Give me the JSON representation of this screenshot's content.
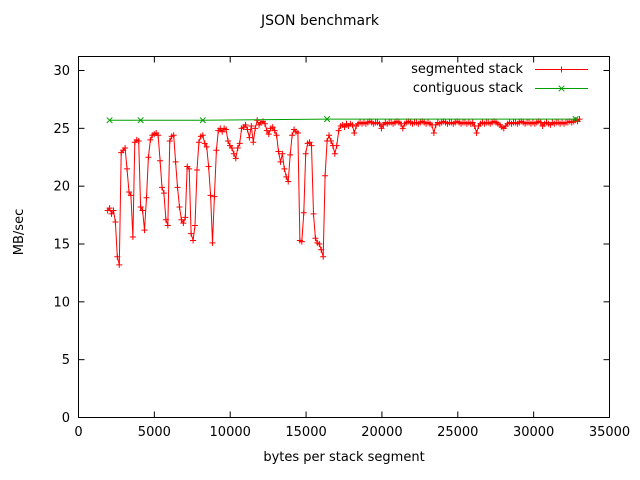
{
  "title": "JSON benchmark",
  "xlabel": "bytes per stack segment",
  "ylabel": "MB/sec",
  "colors": {
    "axis": "#000000",
    "background": "#ffffff",
    "series1": "#ff0000",
    "series2": "#00a000"
  },
  "legend": [
    {
      "label": "segmented stack",
      "color": "#ff0000",
      "marker": "plus"
    },
    {
      "label": "contiguous stack",
      "color": "#00a000",
      "marker": "x"
    }
  ],
  "chart_data": {
    "type": "line",
    "title": "JSON benchmark",
    "xlabel": "bytes per stack segment",
    "ylabel": "MB/sec",
    "xlim": [
      0,
      35000
    ],
    "ylim": [
      0,
      30
    ],
    "x_ticks": [
      0,
      5000,
      10000,
      15000,
      20000,
      25000,
      30000,
      35000
    ],
    "y_ticks": [
      0,
      5,
      10,
      15,
      20,
      25,
      30
    ],
    "grid": false,
    "legend_position": "top-right-inside",
    "series": [
      {
        "name": "segmented stack",
        "color": "#ff0000",
        "marker": "plus",
        "points": [
          [
            1920,
            17.9
          ],
          [
            2048,
            18.1
          ],
          [
            2176,
            17.6
          ],
          [
            2304,
            17.9
          ],
          [
            2432,
            16.9
          ],
          [
            2560,
            13.9
          ],
          [
            2688,
            13.2
          ],
          [
            2816,
            22.9
          ],
          [
            2944,
            23.1
          ],
          [
            3072,
            23.3
          ],
          [
            3200,
            21.5
          ],
          [
            3328,
            19.5
          ],
          [
            3456,
            19.2
          ],
          [
            3584,
            15.6
          ],
          [
            3712,
            23.8
          ],
          [
            3840,
            24.0
          ],
          [
            3968,
            23.9
          ],
          [
            4096,
            18.2
          ],
          [
            4224,
            17.9
          ],
          [
            4352,
            16.2
          ],
          [
            4480,
            19.0
          ],
          [
            4608,
            22.5
          ],
          [
            4736,
            24.0
          ],
          [
            4864,
            24.4
          ],
          [
            4992,
            24.5
          ],
          [
            5120,
            24.6
          ],
          [
            5248,
            24.4
          ],
          [
            5376,
            22.2
          ],
          [
            5504,
            19.9
          ],
          [
            5632,
            19.4
          ],
          [
            5760,
            17.1
          ],
          [
            5888,
            16.6
          ],
          [
            6016,
            23.9
          ],
          [
            6144,
            24.3
          ],
          [
            6272,
            24.4
          ],
          [
            6400,
            22.1
          ],
          [
            6528,
            19.9
          ],
          [
            6656,
            18.2
          ],
          [
            6784,
            17.1
          ],
          [
            6912,
            16.8
          ],
          [
            7040,
            17.3
          ],
          [
            7168,
            21.7
          ],
          [
            7296,
            21.5
          ],
          [
            7424,
            15.9
          ],
          [
            7552,
            15.3
          ],
          [
            7680,
            16.6
          ],
          [
            7808,
            21.4
          ],
          [
            7936,
            23.8
          ],
          [
            8064,
            24.3
          ],
          [
            8192,
            24.4
          ],
          [
            8320,
            23.7
          ],
          [
            8448,
            23.4
          ],
          [
            8576,
            21.7
          ],
          [
            8704,
            19.2
          ],
          [
            8832,
            15.1
          ],
          [
            8960,
            19.1
          ],
          [
            9088,
            23.1
          ],
          [
            9216,
            24.8
          ],
          [
            9344,
            25.0
          ],
          [
            9472,
            24.7
          ],
          [
            9600,
            25.0
          ],
          [
            9728,
            24.9
          ],
          [
            9856,
            23.9
          ],
          [
            9984,
            23.5
          ],
          [
            10112,
            23.3
          ],
          [
            10240,
            22.8
          ],
          [
            10368,
            22.4
          ],
          [
            10496,
            23.3
          ],
          [
            10624,
            23.7
          ],
          [
            10752,
            25.0
          ],
          [
            10880,
            25.1
          ],
          [
            11008,
            25.3
          ],
          [
            11136,
            24.9
          ],
          [
            11264,
            24.2
          ],
          [
            11392,
            25.2
          ],
          [
            11520,
            23.8
          ],
          [
            11648,
            25.0
          ],
          [
            11776,
            25.7
          ],
          [
            11904,
            25.3
          ],
          [
            12032,
            25.5
          ],
          [
            12160,
            25.6
          ],
          [
            12288,
            25.4
          ],
          [
            12416,
            24.8
          ],
          [
            12544,
            24.5
          ],
          [
            12672,
            25.0
          ],
          [
            12800,
            25.1
          ],
          [
            12928,
            24.8
          ],
          [
            13056,
            24.4
          ],
          [
            13184,
            23.0
          ],
          [
            13312,
            22.1
          ],
          [
            13440,
            22.8
          ],
          [
            13568,
            21.5
          ],
          [
            13696,
            20.8
          ],
          [
            13824,
            20.4
          ],
          [
            13952,
            22.7
          ],
          [
            14080,
            24.4
          ],
          [
            14208,
            24.9
          ],
          [
            14336,
            24.7
          ],
          [
            14464,
            24.6
          ],
          [
            14592,
            15.3
          ],
          [
            14720,
            15.2
          ],
          [
            14848,
            17.7
          ],
          [
            14976,
            22.8
          ],
          [
            15104,
            23.7
          ],
          [
            15232,
            23.8
          ],
          [
            15360,
            23.5
          ],
          [
            15488,
            17.6
          ],
          [
            15616,
            15.5
          ],
          [
            15744,
            15.1
          ],
          [
            15872,
            15.0
          ],
          [
            16000,
            14.5
          ],
          [
            16128,
            13.9
          ],
          [
            16256,
            20.9
          ],
          [
            16384,
            23.9
          ],
          [
            16512,
            24.4
          ],
          [
            16640,
            23.9
          ],
          [
            16768,
            23.5
          ],
          [
            16896,
            22.8
          ],
          [
            17024,
            23.5
          ],
          [
            17152,
            24.8
          ],
          [
            17280,
            25.2
          ],
          [
            17408,
            25.3
          ],
          [
            17536,
            25.1
          ],
          [
            17664,
            25.4
          ],
          [
            17792,
            25.2
          ],
          [
            17920,
            25.4
          ],
          [
            18048,
            25.3
          ],
          [
            18176,
            24.6
          ],
          [
            18304,
            25.2
          ],
          [
            18432,
            25.4
          ],
          [
            18560,
            25.5
          ],
          [
            18688,
            25.4
          ],
          [
            18816,
            25.5
          ],
          [
            18944,
            25.4
          ],
          [
            19072,
            25.5
          ],
          [
            19200,
            25.6
          ],
          [
            19328,
            25.5
          ],
          [
            19456,
            25.4
          ],
          [
            19584,
            25.5
          ],
          [
            19712,
            25.5
          ],
          [
            19840,
            25.4
          ],
          [
            19968,
            25.0
          ],
          [
            20096,
            25.3
          ],
          [
            20224,
            25.5
          ],
          [
            20352,
            25.4
          ],
          [
            20480,
            25.5
          ],
          [
            20608,
            25.5
          ],
          [
            20736,
            25.4
          ],
          [
            20864,
            25.5
          ],
          [
            20992,
            25.6
          ],
          [
            21120,
            25.5
          ],
          [
            21248,
            25.4
          ],
          [
            21376,
            25.0
          ],
          [
            21504,
            25.4
          ],
          [
            21632,
            25.5
          ],
          [
            21760,
            25.6
          ],
          [
            21888,
            25.5
          ],
          [
            22016,
            25.4
          ],
          [
            22144,
            25.5
          ],
          [
            22272,
            25.5
          ],
          [
            22400,
            25.4
          ],
          [
            22528,
            25.5
          ],
          [
            22656,
            25.6
          ],
          [
            22784,
            25.5
          ],
          [
            22912,
            25.4
          ],
          [
            23040,
            25.5
          ],
          [
            23168,
            25.4
          ],
          [
            23296,
            25.3
          ],
          [
            23424,
            24.6
          ],
          [
            23552,
            25.3
          ],
          [
            23680,
            25.5
          ],
          [
            23808,
            25.4
          ],
          [
            23936,
            25.5
          ],
          [
            24064,
            25.6
          ],
          [
            24192,
            25.5
          ],
          [
            24320,
            25.4
          ],
          [
            24448,
            25.5
          ],
          [
            24576,
            25.5
          ],
          [
            24704,
            25.4
          ],
          [
            24832,
            25.5
          ],
          [
            24960,
            25.6
          ],
          [
            25088,
            25.5
          ],
          [
            25216,
            25.4
          ],
          [
            25344,
            25.5
          ],
          [
            25472,
            25.5
          ],
          [
            25600,
            25.4
          ],
          [
            25728,
            25.5
          ],
          [
            25856,
            25.4
          ],
          [
            25984,
            25.5
          ],
          [
            26112,
            25.2
          ],
          [
            26240,
            24.6
          ],
          [
            26368,
            25.2
          ],
          [
            26496,
            25.4
          ],
          [
            26624,
            25.5
          ],
          [
            26752,
            25.4
          ],
          [
            26880,
            25.5
          ],
          [
            27008,
            25.5
          ],
          [
            27136,
            25.4
          ],
          [
            27264,
            25.5
          ],
          [
            27392,
            25.6
          ],
          [
            27520,
            25.5
          ],
          [
            27648,
            25.4
          ],
          [
            27776,
            25.3
          ],
          [
            27904,
            25.1
          ],
          [
            28032,
            25.0
          ],
          [
            28160,
            25.2
          ],
          [
            28288,
            25.4
          ],
          [
            28416,
            25.5
          ],
          [
            28544,
            25.4
          ],
          [
            28672,
            25.5
          ],
          [
            28800,
            25.5
          ],
          [
            28928,
            25.4
          ],
          [
            29056,
            25.5
          ],
          [
            29184,
            25.6
          ],
          [
            29312,
            25.5
          ],
          [
            29440,
            25.4
          ],
          [
            29568,
            25.5
          ],
          [
            29696,
            25.5
          ],
          [
            29824,
            25.4
          ],
          [
            29952,
            25.5
          ],
          [
            30080,
            25.4
          ],
          [
            30208,
            25.5
          ],
          [
            30336,
            25.6
          ],
          [
            30464,
            25.5
          ],
          [
            30592,
            25.2
          ],
          [
            30720,
            25.4
          ],
          [
            30848,
            25.5
          ],
          [
            30976,
            25.4
          ],
          [
            31104,
            25.3
          ],
          [
            31232,
            25.5
          ],
          [
            31360,
            25.4
          ],
          [
            31488,
            25.5
          ],
          [
            31616,
            25.5
          ],
          [
            31744,
            25.4
          ],
          [
            31872,
            25.5
          ],
          [
            32000,
            25.4
          ],
          [
            32128,
            25.5
          ],
          [
            32256,
            25.5
          ],
          [
            32384,
            25.6
          ],
          [
            32512,
            25.5
          ],
          [
            32640,
            25.6
          ],
          [
            32768,
            25.7
          ],
          [
            32896,
            25.6
          ],
          [
            33024,
            25.8
          ]
        ]
      },
      {
        "name": "contiguous stack",
        "color": "#00a000",
        "marker": "x",
        "points": [
          [
            2048,
            25.7
          ],
          [
            4096,
            25.7
          ],
          [
            8192,
            25.7
          ],
          [
            16384,
            25.8
          ],
          [
            32768,
            25.8
          ]
        ]
      }
    ]
  }
}
